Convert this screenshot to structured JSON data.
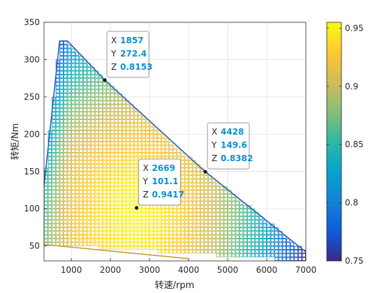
{
  "chart_data": {
    "type": "heatmap",
    "xlabel": "转速/rpm",
    "ylabel": "转矩/Nm",
    "xlim": [
      300,
      7000
    ],
    "ylim": [
      30,
      350
    ],
    "xticks": [
      "1000",
      "2000",
      "3000",
      "4000",
      "5000",
      "6000",
      "7000"
    ],
    "yticks": [
      "50",
      "100",
      "150",
      "200",
      "250",
      "300",
      "350"
    ],
    "grid": true,
    "region_boundary": {
      "x": [
        300,
        700,
        900,
        1857,
        4428,
        7000,
        7000,
        300
      ],
      "y": [
        130,
        325,
        325,
        272.4,
        149.6,
        42,
        30,
        52
      ]
    },
    "colorbar": {
      "range": [
        0.75,
        0.955
      ],
      "ticks": [
        "0.75",
        "0.8",
        "0.85",
        "0.9",
        "0.95"
      ],
      "colormap": [
        "#352a87",
        "#0f5cdd",
        "#1481d6",
        "#06a4ca",
        "#2eb7a4",
        "#87bf77",
        "#d1bb59",
        "#fec832",
        "#f9fb0e"
      ]
    },
    "datatips": [
      {
        "X": "1857",
        "Y": "272.4",
        "Z": "0.8153",
        "x": 1857,
        "y": 272.4
      },
      {
        "X": "4428",
        "Y": "149.6",
        "Z": "0.8382",
        "x": 4428,
        "y": 149.6
      },
      {
        "X": "2669",
        "Y": "101.1",
        "Z": "0.9417",
        "x": 2669,
        "y": 101.1
      }
    ],
    "datatip_labels": {
      "x": "X",
      "y": "Y",
      "z": "Z"
    }
  }
}
